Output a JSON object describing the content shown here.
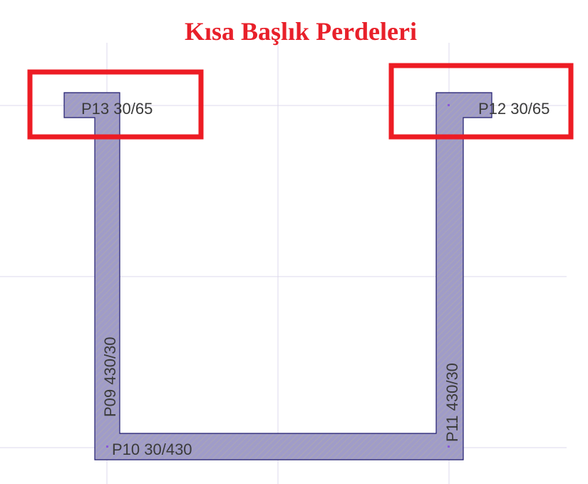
{
  "title": "Kısa Başlık Perdeleri",
  "colors": {
    "title": "#e8202a",
    "highlight_box": "#ed1c24",
    "wall_fill": "#a09cc8",
    "wall_outline": "#1e1a6e",
    "grid": "#dcd8ec"
  },
  "walls": [
    {
      "label": "P13 30/65"
    },
    {
      "label": "P12 30/65"
    },
    {
      "label": "P09 430/30"
    },
    {
      "label": "P11 430/30"
    },
    {
      "label": "P10 30/430"
    }
  ]
}
